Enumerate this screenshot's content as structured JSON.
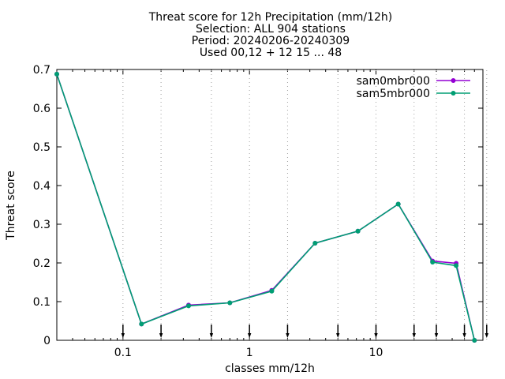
{
  "chart_data": {
    "type": "line",
    "title_lines": [
      "Threat score  for 12h Precipitation (mm/12h)",
      "Selection: ALL    904 stations",
      "Period: 20240206-20240309",
      "Used 00,12 + 12 15 ... 48"
    ],
    "xlabel": "classes mm/12h",
    "ylabel": "Threat score",
    "x_scale": "log",
    "xlim": [
      0.03,
      70
    ],
    "ylim": [
      0,
      0.7
    ],
    "x_ticks": [
      0.1,
      1,
      10
    ],
    "x_tick_labels": [
      "0.1",
      "1",
      "10"
    ],
    "y_ticks": [
      0,
      0.1,
      0.2,
      0.3,
      0.4,
      0.5,
      0.6,
      0.7
    ],
    "y_tick_labels": [
      "0",
      "0.1",
      "0.2",
      "0.3",
      "0.4",
      "0.5",
      "0.6",
      "0.7"
    ],
    "legend_position": "top-right",
    "grid": false,
    "series": [
      {
        "name": "sam0mbr000",
        "color": "#9400d3",
        "x": [
          0.03,
          0.14,
          0.33,
          0.7,
          1.5,
          3.3,
          7.2,
          15,
          28,
          43,
          60
        ],
        "y": [
          0.688,
          0.042,
          0.091,
          0.097,
          0.129,
          0.251,
          0.282,
          0.352,
          0.205,
          0.199,
          0.0
        ]
      },
      {
        "name": "sam5mbr000",
        "color": "#009e73",
        "x": [
          0.03,
          0.14,
          0.33,
          0.7,
          1.5,
          3.3,
          7.2,
          15,
          28,
          43,
          60
        ],
        "y": [
          0.688,
          0.042,
          0.089,
          0.097,
          0.127,
          0.251,
          0.282,
          0.352,
          0.202,
          0.193,
          0.0
        ]
      }
    ],
    "threshold_arrows_x": [
      0.1,
      0.2,
      0.5,
      1,
      2,
      5,
      10,
      20,
      30,
      50,
      75
    ]
  }
}
